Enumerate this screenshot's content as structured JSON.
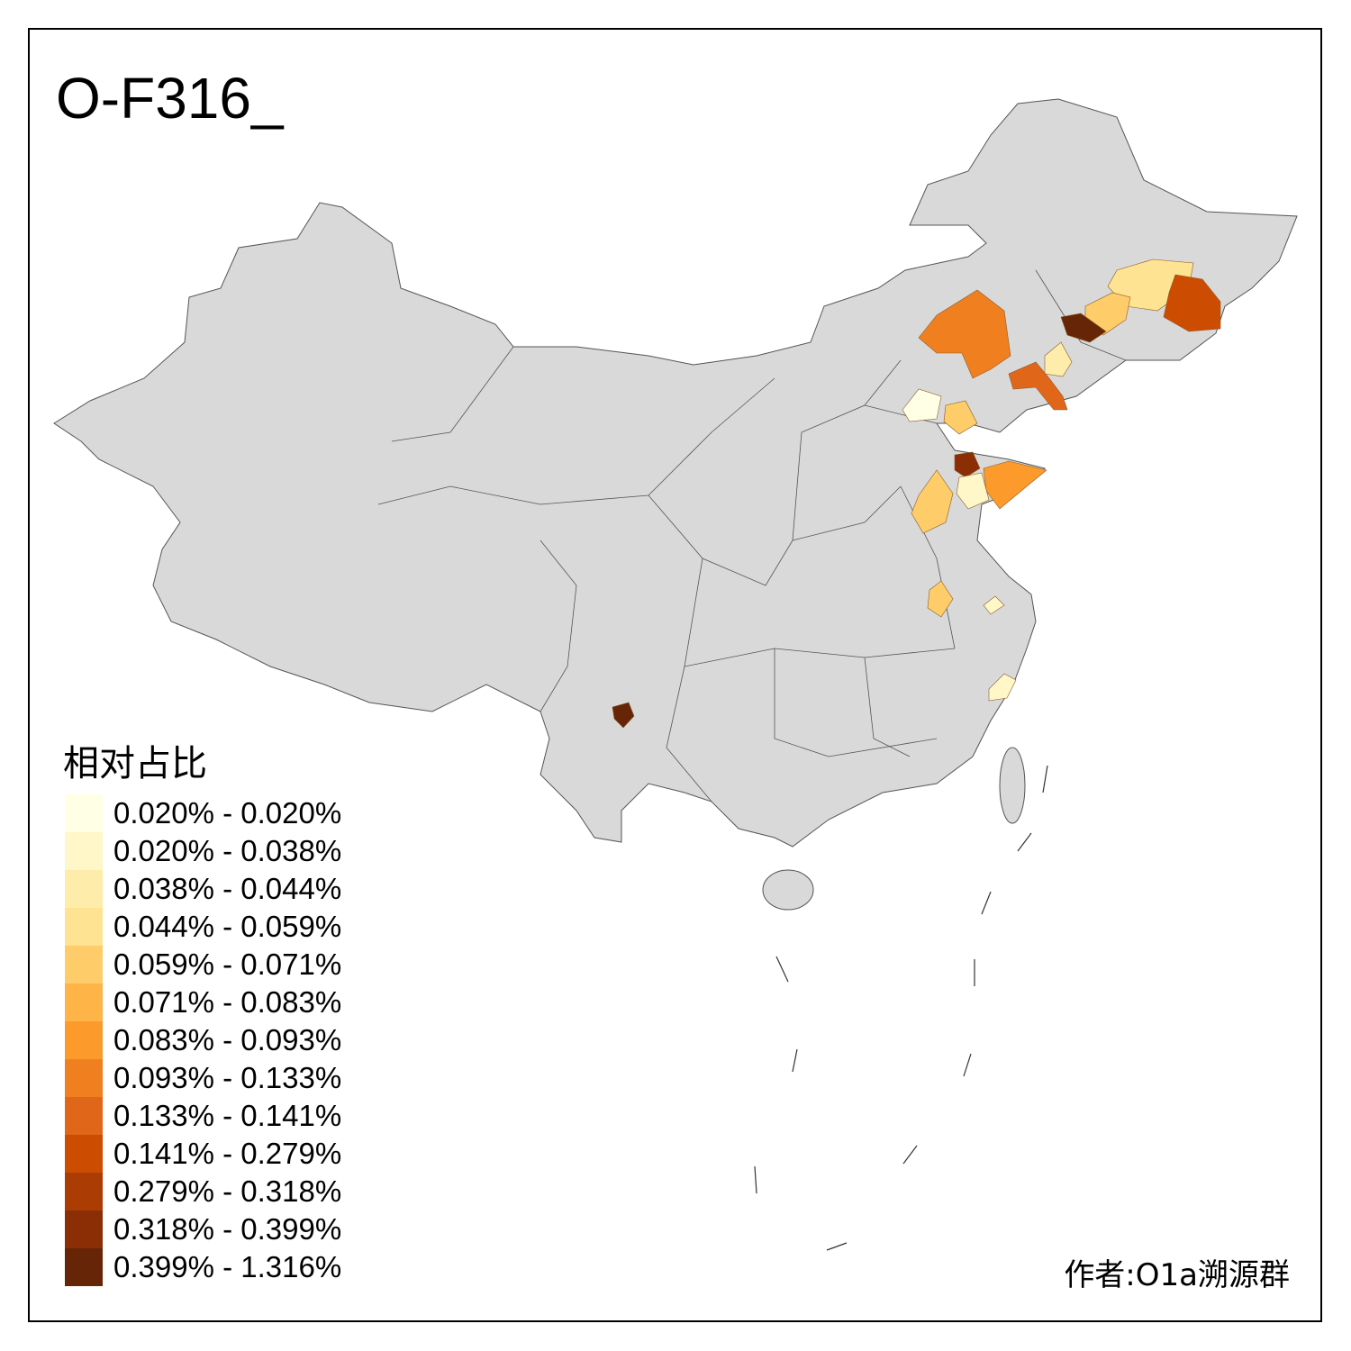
{
  "title": "O-F316_",
  "legend": {
    "title": "相对占比",
    "items": [
      {
        "label": "0.020% - 0.020%",
        "color": "#FFFFE5"
      },
      {
        "label": "0.020% - 0.038%",
        "color": "#FFF7C8"
      },
      {
        "label": "0.038% - 0.044%",
        "color": "#FEEDAA"
      },
      {
        "label": "0.044% - 0.059%",
        "color": "#FEE392"
      },
      {
        "label": "0.059% - 0.071%",
        "color": "#FECD69"
      },
      {
        "label": "0.071% - 0.083%",
        "color": "#FEB446"
      },
      {
        "label": "0.083% - 0.093%",
        "color": "#FD9A2C"
      },
      {
        "label": "0.093% - 0.133%",
        "color": "#F0801F"
      },
      {
        "label": "0.133% - 0.141%",
        "color": "#E0661A"
      },
      {
        "label": "0.141% - 0.279%",
        "color": "#CC4C02"
      },
      {
        "label": "0.279% - 0.318%",
        "color": "#AA3C04"
      },
      {
        "label": "0.318% - 0.399%",
        "color": "#8B2E05"
      },
      {
        "label": "0.399% - 1.316%",
        "color": "#662506"
      }
    ]
  },
  "map": {
    "base_color": "#D9D9D9",
    "border_color": "#555555"
  },
  "author": "作者:O1a溯源群"
}
